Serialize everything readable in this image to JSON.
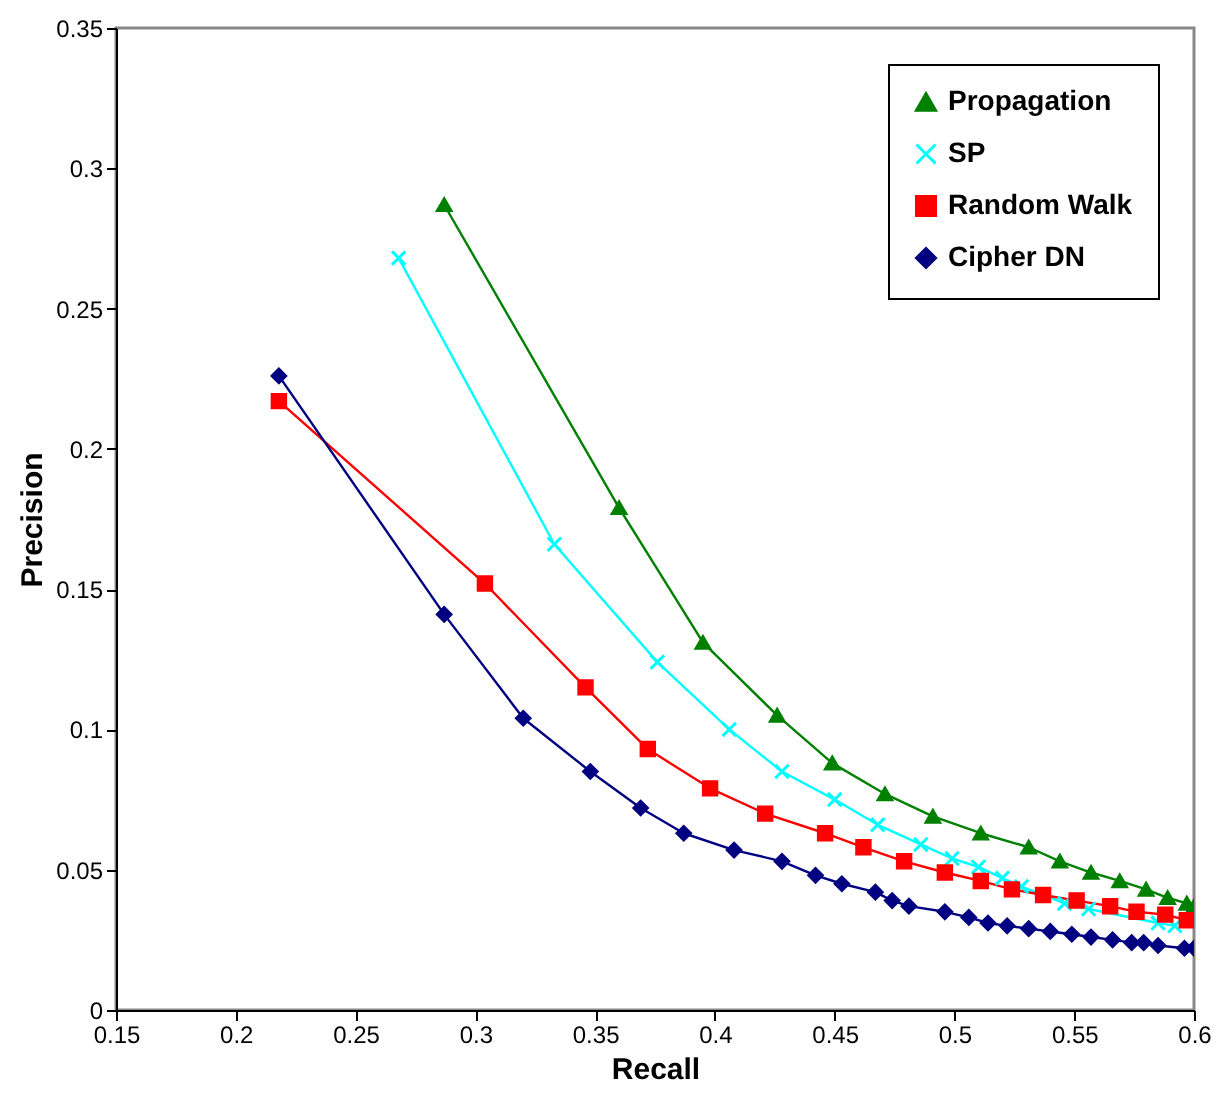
{
  "chart_data": {
    "type": "line",
    "xlabel": "Recall",
    "ylabel": "Precision",
    "xlim": [
      0.15,
      0.6
    ],
    "xticks": [
      0.15,
      0.2,
      0.25,
      0.3,
      0.35,
      0.4,
      0.45,
      0.5,
      0.55,
      0.6
    ],
    "ylim": [
      0,
      0.35
    ],
    "yticks": [
      0,
      0.05,
      0.1,
      0.15,
      0.2,
      0.25,
      0.3,
      0.35
    ],
    "grid": false,
    "legend": "top right",
    "line_style": "solid",
    "series": [
      {
        "name": "Propagation",
        "color": "#008000",
        "marker": "triangle",
        "x": [
          0.287,
          0.36,
          0.395,
          0.426,
          0.449,
          0.471,
          0.491,
          0.511,
          0.531,
          0.544,
          0.557,
          0.569,
          0.58,
          0.589,
          0.597,
          0.6
        ],
        "values": [
          0.287,
          0.179,
          0.131,
          0.105,
          0.088,
          0.077,
          0.069,
          0.063,
          0.058,
          0.053,
          0.049,
          0.046,
          0.043,
          0.04,
          0.038,
          0.037
        ]
      },
      {
        "name": "SP",
        "color": "#00ffff",
        "marker": "cross",
        "x": [
          0.268,
          0.333,
          0.376,
          0.406,
          0.428,
          0.45,
          0.468,
          0.486,
          0.499,
          0.51,
          0.52,
          0.528,
          0.546,
          0.556,
          0.585,
          0.592
        ],
        "values": [
          0.268,
          0.166,
          0.124,
          0.1,
          0.085,
          0.075,
          0.066,
          0.059,
          0.054,
          0.051,
          0.047,
          0.044,
          0.038,
          0.036,
          0.031,
          0.03
        ]
      },
      {
        "name": "Random Walk",
        "color": "#ff0000",
        "marker": "square",
        "x": [
          0.218,
          0.304,
          0.346,
          0.372,
          0.398,
          0.421,
          0.446,
          0.462,
          0.479,
          0.496,
          0.511,
          0.524,
          0.537,
          0.551,
          0.565,
          0.576,
          0.588,
          0.597
        ],
        "values": [
          0.217,
          0.152,
          0.115,
          0.093,
          0.079,
          0.07,
          0.063,
          0.058,
          0.053,
          0.049,
          0.046,
          0.043,
          0.041,
          0.039,
          0.037,
          0.035,
          0.034,
          0.032
        ]
      },
      {
        "name": "Cipher DN",
        "color": "#000080",
        "marker": "diamond",
        "x": [
          0.218,
          0.287,
          0.32,
          0.348,
          0.369,
          0.387,
          0.408,
          0.428,
          0.442,
          0.453,
          0.467,
          0.474,
          0.481,
          0.496,
          0.506,
          0.514,
          0.522,
          0.531,
          0.54,
          0.549,
          0.557,
          0.566,
          0.574,
          0.579,
          0.585,
          0.596,
          0.6
        ],
        "values": [
          0.226,
          0.141,
          0.104,
          0.085,
          0.072,
          0.063,
          0.057,
          0.053,
          0.048,
          0.045,
          0.042,
          0.039,
          0.037,
          0.035,
          0.033,
          0.031,
          0.03,
          0.029,
          0.028,
          0.027,
          0.026,
          0.025,
          0.024,
          0.024,
          0.023,
          0.022,
          0.022
        ]
      }
    ]
  }
}
